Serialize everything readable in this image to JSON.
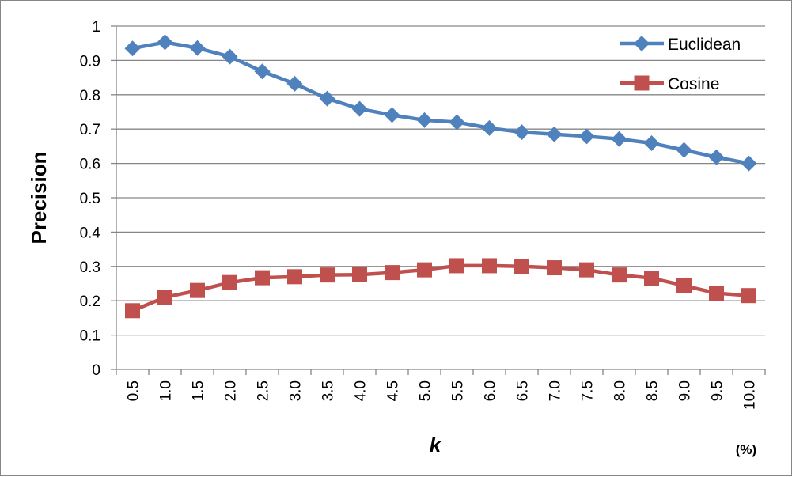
{
  "chart_data": {
    "type": "line",
    "title": "",
    "xlabel": "k",
    "x_unit": "(%)",
    "ylabel": "Precision",
    "ylim": [
      0,
      1
    ],
    "yticks": [
      0,
      0.1,
      0.2,
      0.3,
      0.4,
      0.5,
      0.6,
      0.7,
      0.8,
      0.9,
      1
    ],
    "ytick_labels": [
      "0",
      "0.1",
      "0.2",
      "0.3",
      "0.4",
      "0.5",
      "0.6",
      "0.7",
      "0.8",
      "0.9",
      "1"
    ],
    "categories": [
      "0.5",
      "1.0",
      "1.5",
      "2.0",
      "2.5",
      "3.0",
      "3.5",
      "4.0",
      "4.5",
      "5.0",
      "5.5",
      "6.0",
      "6.5",
      "7.0",
      "7.5",
      "8.0",
      "8.5",
      "9.0",
      "9.5",
      "10.0"
    ],
    "grid": "horizontal",
    "legend_position": "top-right",
    "series": [
      {
        "name": "Euclidean",
        "color": "#4F81BD",
        "marker": "diamond",
        "values": [
          0.935,
          0.953,
          0.936,
          0.911,
          0.868,
          0.832,
          0.789,
          0.759,
          0.741,
          0.726,
          0.72,
          0.703,
          0.691,
          0.685,
          0.679,
          0.671,
          0.659,
          0.639,
          0.618,
          0.6
        ]
      },
      {
        "name": "Cosine",
        "color": "#C0504D",
        "marker": "square",
        "values": [
          0.171,
          0.21,
          0.23,
          0.253,
          0.267,
          0.27,
          0.275,
          0.276,
          0.282,
          0.29,
          0.302,
          0.302,
          0.3,
          0.296,
          0.29,
          0.275,
          0.266,
          0.244,
          0.222,
          0.215
        ]
      }
    ]
  }
}
